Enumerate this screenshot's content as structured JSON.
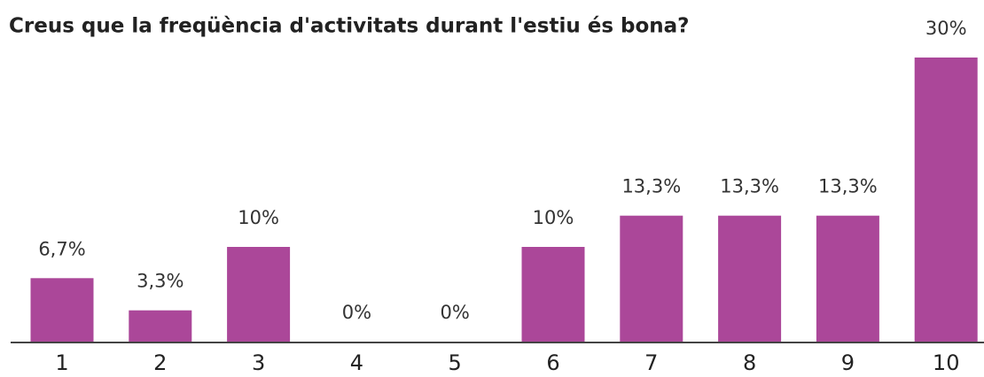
{
  "chart_data": {
    "type": "bar",
    "title": "Creus que la freqüència d'activitats durant l'estiu és bona?",
    "categories": [
      "1",
      "2",
      "3",
      "4",
      "5",
      "6",
      "7",
      "8",
      "9",
      "10"
    ],
    "values": [
      6.7,
      3.3,
      10,
      0,
      0,
      10,
      13.3,
      13.3,
      13.3,
      30
    ],
    "value_labels": [
      "6,7%",
      "3,3%",
      "10%",
      "0%",
      "0%",
      "10%",
      "13,3%",
      "13,3%",
      "13,3%",
      "30%"
    ],
    "color": "#ab4799",
    "ylim": [
      0,
      30
    ]
  }
}
